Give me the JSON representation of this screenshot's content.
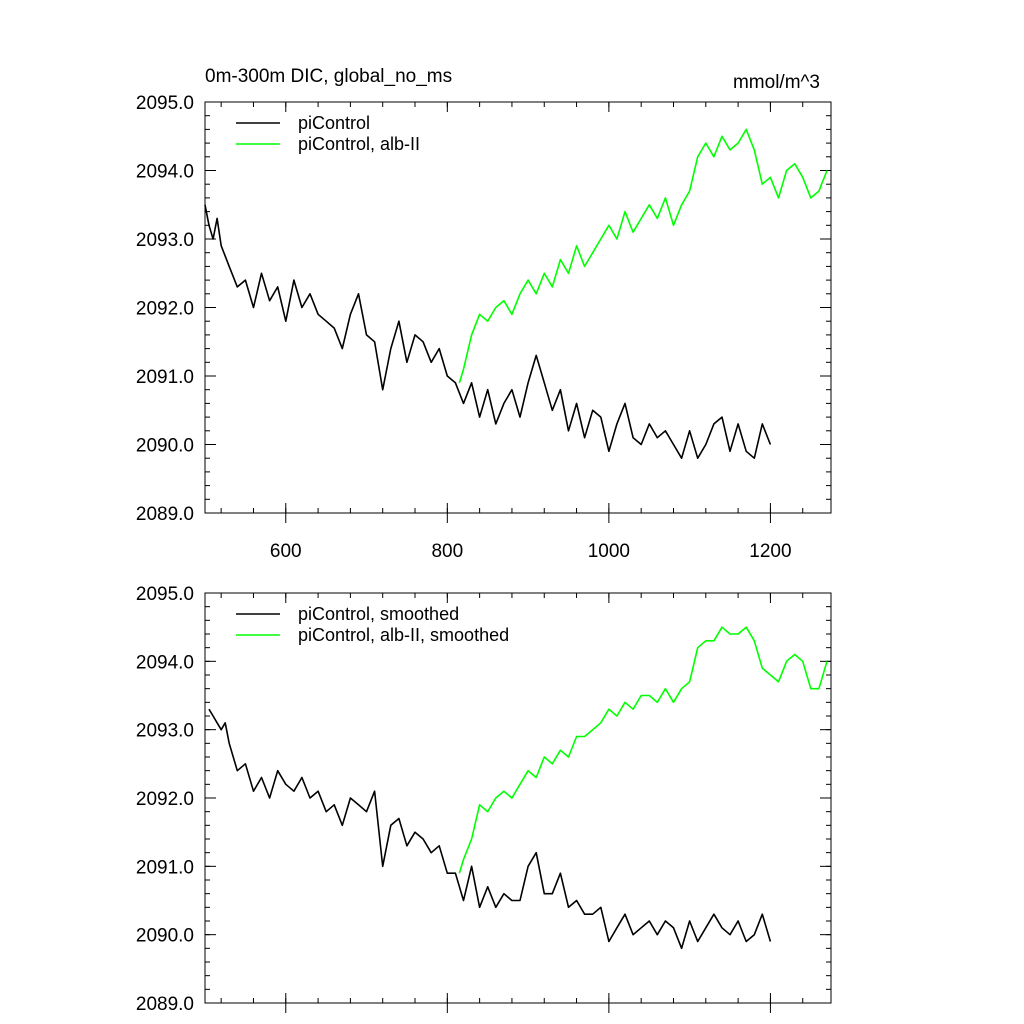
{
  "header": {
    "title_left": "0m-300m DIC, global_no_ms",
    "title_right": "mmol/m^3"
  },
  "colors": {
    "control": "#000000",
    "alb": "#00ff00"
  },
  "chart_data": [
    {
      "type": "line",
      "title": "0m-300m DIC, global_no_ms",
      "units": "mmol/m^3",
      "xlim": [
        500,
        1275
      ],
      "ylim": [
        2089.0,
        2095.0
      ],
      "x_ticks": [
        600,
        800,
        1000,
        1200
      ],
      "x_tick_labels": [
        "600",
        "800",
        "1000",
        "1200"
      ],
      "y_ticks": [
        2089.0,
        2090.0,
        2091.0,
        2092.0,
        2093.0,
        2094.0,
        2095.0
      ],
      "y_tick_labels": [
        "2089.0",
        "2090.0",
        "2091.0",
        "2092.0",
        "2093.0",
        "2094.0",
        "2095.0"
      ],
      "legend": "top-left",
      "series": [
        {
          "name": "piControl",
          "color": "#000000",
          "x": [
            500,
            505,
            510,
            515,
            520,
            530,
            540,
            550,
            560,
            570,
            580,
            590,
            600,
            610,
            620,
            630,
            640,
            650,
            660,
            670,
            680,
            690,
            700,
            710,
            720,
            730,
            740,
            750,
            760,
            770,
            780,
            790,
            800,
            810,
            820,
            830,
            840,
            850,
            860,
            870,
            880,
            890,
            900,
            910,
            920,
            930,
            940,
            950,
            960,
            970,
            980,
            990,
            1000,
            1010,
            1020,
            1030,
            1040,
            1050,
            1060,
            1070,
            1080,
            1090,
            1100,
            1110,
            1120,
            1130,
            1140,
            1150,
            1160,
            1170,
            1180,
            1190,
            1200
          ],
          "y": [
            2093.5,
            2093.2,
            2093.0,
            2093.3,
            2092.9,
            2092.6,
            2092.3,
            2092.4,
            2092.0,
            2092.5,
            2092.1,
            2092.3,
            2091.8,
            2092.4,
            2092.0,
            2092.2,
            2091.9,
            2091.8,
            2091.7,
            2091.4,
            2091.9,
            2092.2,
            2091.6,
            2091.5,
            2090.8,
            2091.4,
            2091.8,
            2091.2,
            2091.6,
            2091.5,
            2091.2,
            2091.4,
            2091.0,
            2090.9,
            2090.6,
            2090.9,
            2090.4,
            2090.8,
            2090.3,
            2090.6,
            2090.8,
            2090.4,
            2090.9,
            2091.3,
            2090.9,
            2090.5,
            2090.8,
            2090.2,
            2090.6,
            2090.1,
            2090.5,
            2090.4,
            2089.9,
            2090.3,
            2090.6,
            2090.1,
            2090.0,
            2090.3,
            2090.1,
            2090.2,
            2090.0,
            2089.8,
            2090.2,
            2089.8,
            2090.0,
            2090.3,
            2090.4,
            2089.9,
            2090.3,
            2089.9,
            2089.8,
            2090.3,
            2090.0
          ]
        },
        {
          "name": "piControl, alb-II",
          "color": "#00ff00",
          "x": [
            815,
            820,
            830,
            840,
            850,
            860,
            870,
            880,
            890,
            900,
            910,
            920,
            930,
            940,
            950,
            960,
            970,
            980,
            990,
            1000,
            1010,
            1020,
            1030,
            1040,
            1050,
            1060,
            1070,
            1080,
            1090,
            1100,
            1110,
            1120,
            1130,
            1140,
            1150,
            1160,
            1170,
            1180,
            1190,
            1200,
            1210,
            1220,
            1230,
            1240,
            1250,
            1260,
            1270
          ],
          "y": [
            2090.9,
            2091.1,
            2091.6,
            2091.9,
            2091.8,
            2092.0,
            2092.1,
            2091.9,
            2092.2,
            2092.4,
            2092.2,
            2092.5,
            2092.3,
            2092.7,
            2092.5,
            2092.9,
            2092.6,
            2092.8,
            2093.0,
            2093.2,
            2093.0,
            2093.4,
            2093.1,
            2093.3,
            2093.5,
            2093.3,
            2093.6,
            2093.2,
            2093.5,
            2093.7,
            2094.2,
            2094.4,
            2094.2,
            2094.5,
            2094.3,
            2094.4,
            2094.6,
            2094.3,
            2093.8,
            2093.9,
            2093.6,
            2094.0,
            2094.1,
            2093.9,
            2093.6,
            2093.7,
            2094.0
          ]
        }
      ]
    },
    {
      "type": "line",
      "xlim": [
        500,
        1275
      ],
      "ylim": [
        2089.0,
        2095.0
      ],
      "x_ticks": [
        600,
        800,
        1000,
        1200
      ],
      "y_ticks": [
        2089.0,
        2090.0,
        2091.0,
        2092.0,
        2093.0,
        2094.0,
        2095.0
      ],
      "y_tick_labels": [
        "2089.0",
        "2090.0",
        "2091.0",
        "2092.0",
        "2093.0",
        "2094.0",
        "2095.0"
      ],
      "legend": "top-left",
      "series": [
        {
          "name": "piControl, smoothed",
          "color": "#000000",
          "x": [
            505,
            510,
            515,
            520,
            525,
            530,
            540,
            550,
            560,
            570,
            580,
            590,
            600,
            610,
            620,
            630,
            640,
            650,
            660,
            670,
            680,
            690,
            700,
            710,
            720,
            730,
            740,
            750,
            760,
            770,
            780,
            790,
            800,
            810,
            820,
            830,
            840,
            850,
            860,
            870,
            880,
            890,
            900,
            910,
            920,
            930,
            940,
            950,
            960,
            970,
            980,
            990,
            1000,
            1010,
            1020,
            1030,
            1040,
            1050,
            1060,
            1070,
            1080,
            1090,
            1100,
            1110,
            1120,
            1130,
            1140,
            1150,
            1160,
            1170,
            1180,
            1190,
            1200
          ],
          "y": [
            2093.3,
            2093.2,
            2093.1,
            2093.0,
            2093.1,
            2092.8,
            2092.4,
            2092.5,
            2092.1,
            2092.3,
            2092.0,
            2092.4,
            2092.2,
            2092.1,
            2092.3,
            2092.0,
            2092.1,
            2091.8,
            2091.9,
            2091.6,
            2092.0,
            2091.9,
            2091.8,
            2092.1,
            2091.0,
            2091.6,
            2091.7,
            2091.3,
            2091.5,
            2091.4,
            2091.2,
            2091.3,
            2090.9,
            2090.9,
            2090.5,
            2091.0,
            2090.4,
            2090.7,
            2090.4,
            2090.6,
            2090.5,
            2090.5,
            2091.0,
            2091.2,
            2090.6,
            2090.6,
            2090.9,
            2090.4,
            2090.5,
            2090.3,
            2090.3,
            2090.4,
            2089.9,
            2090.1,
            2090.3,
            2090.0,
            2090.1,
            2090.2,
            2090.0,
            2090.2,
            2090.1,
            2089.8,
            2090.2,
            2089.9,
            2090.1,
            2090.3,
            2090.1,
            2090.0,
            2090.2,
            2089.9,
            2090.0,
            2090.3,
            2089.9
          ]
        },
        {
          "name": "piControl, alb-II, smoothed",
          "color": "#00ff00",
          "x": [
            815,
            820,
            830,
            840,
            850,
            860,
            870,
            880,
            890,
            900,
            910,
            920,
            930,
            940,
            950,
            960,
            970,
            980,
            990,
            1000,
            1010,
            1020,
            1030,
            1040,
            1050,
            1060,
            1070,
            1080,
            1090,
            1100,
            1110,
            1120,
            1130,
            1140,
            1150,
            1160,
            1170,
            1180,
            1190,
            1200,
            1210,
            1220,
            1230,
            1240,
            1250,
            1260,
            1270
          ],
          "y": [
            2090.9,
            2091.1,
            2091.4,
            2091.9,
            2091.8,
            2092.0,
            2092.1,
            2092.0,
            2092.2,
            2092.4,
            2092.3,
            2092.6,
            2092.5,
            2092.7,
            2092.6,
            2092.9,
            2092.9,
            2093.0,
            2093.1,
            2093.3,
            2093.2,
            2093.4,
            2093.3,
            2093.5,
            2093.5,
            2093.4,
            2093.6,
            2093.4,
            2093.6,
            2093.7,
            2094.2,
            2094.3,
            2094.3,
            2094.5,
            2094.4,
            2094.4,
            2094.5,
            2094.3,
            2093.9,
            2093.8,
            2093.7,
            2094.0,
            2094.1,
            2094.0,
            2093.6,
            2093.6,
            2094.0
          ]
        }
      ]
    }
  ]
}
